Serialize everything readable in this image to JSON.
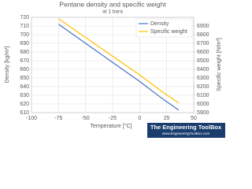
{
  "chart_data": {
    "type": "line",
    "title": "Pentane density and specific weight",
    "subtitle": "at 1 bara",
    "x_label": "Temperature [°C]",
    "y_label": "Density [kg/m³]",
    "y2_label": "Specific weight [N/m³]",
    "x": [
      -75,
      -50,
      -25,
      0,
      20,
      36
    ],
    "series": [
      {
        "name": "Density",
        "color": "#4472c4",
        "values": [
          712,
          690,
          668,
          646,
          627,
          613
        ]
      },
      {
        "name": "Specific weight",
        "color": "#ffc000",
        "axis": "y2",
        "values": [
          6983,
          6767,
          6551,
          6335,
          6149,
          6012
        ]
      }
    ],
    "xlim": [
      -100,
      50
    ],
    "xticks": [
      -100,
      -75,
      -50,
      -25,
      0,
      25,
      50
    ],
    "ylim": [
      610,
      720
    ],
    "yticks": [
      610,
      620,
      630,
      640,
      650,
      660,
      670,
      680,
      690,
      700,
      710,
      720
    ],
    "y2lim": [
      5900,
      7000
    ],
    "y2ticks": [
      5900,
      6000,
      6100,
      6200,
      6300,
      6400,
      6500,
      6600,
      6700,
      6800,
      6900
    ],
    "grid": true,
    "legend": "upper right",
    "logo": [
      "The Engineering ToolBox",
      "www.EngineeringToolBox.com"
    ]
  }
}
